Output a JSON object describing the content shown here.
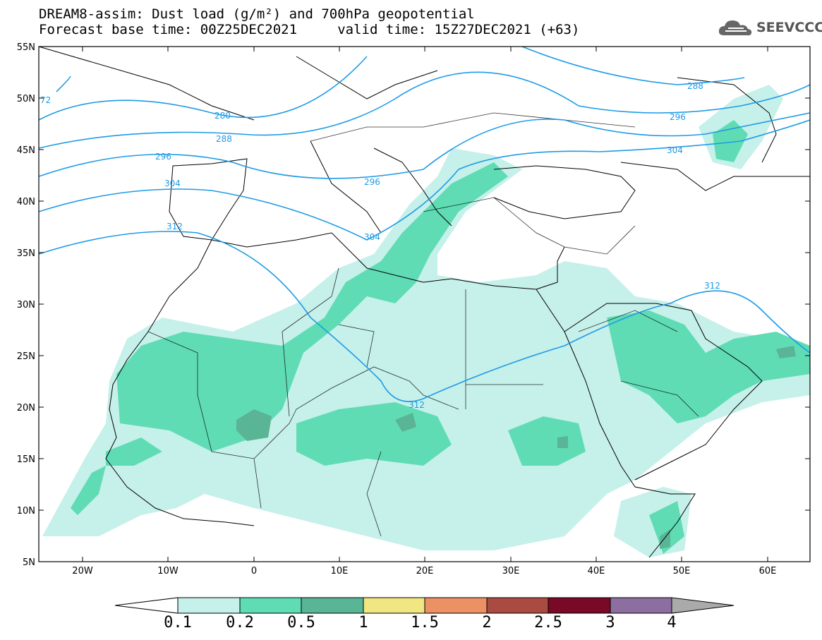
{
  "title": {
    "line1": "DREAM8-assim: Dust load (g/m²) and 700hPa geopotential",
    "line2": "Forecast base time: 00Z25DEC2021     valid time: 15Z27DEC2021 (+63)"
  },
  "logo": {
    "text": "SEEVCCC",
    "icon": "cloud-icon"
  },
  "colors": {
    "contour": "#1e9be6",
    "dust_levels": [
      "#c6f0ea",
      "#5fdcb4",
      "#5ab496",
      "#f0e682",
      "#eb9164",
      "#aa4b41",
      "#780a28",
      "#8c6ea0",
      "#aaaaaa"
    ]
  },
  "axes": {
    "lat_labels": [
      "55N",
      "50N",
      "45N",
      "40N",
      "35N",
      "30N",
      "25N",
      "20N",
      "15N",
      "10N",
      "5N"
    ],
    "lon_labels": [
      "20W",
      "10W",
      "0",
      "10E",
      "20E",
      "30E",
      "40E",
      "50E",
      "60E"
    ]
  },
  "contour_labels": [
    "72",
    "280",
    "288",
    "296",
    "304",
    "312",
    "296",
    "304",
    "312",
    "288",
    "296",
    "304",
    "312"
  ],
  "colorbar": {
    "labels": [
      "0.1",
      "0.2",
      "0.5",
      "1",
      "1.5",
      "2",
      "2.5",
      "3",
      "4"
    ]
  }
}
